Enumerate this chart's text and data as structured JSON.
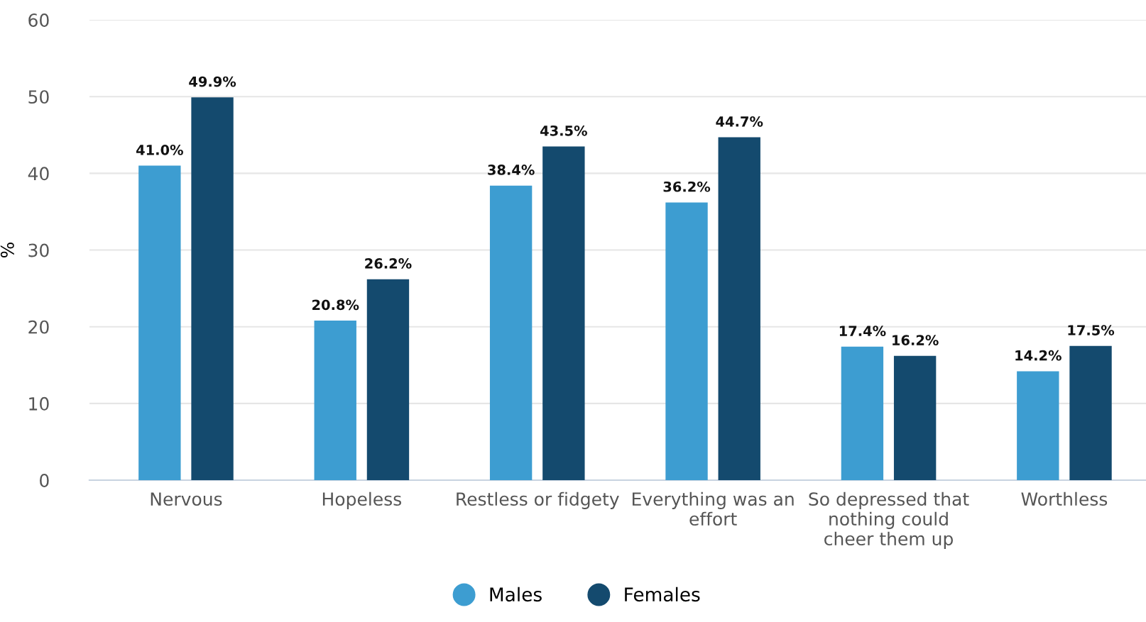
{
  "chart_data": {
    "type": "bar",
    "ylabel": "%",
    "categories": [
      "Nervous",
      "Hopeless",
      "Restless or fidgety",
      "Everything was an\neffort",
      "So depressed that\nnothing could\ncheer them up",
      "Worthless"
    ],
    "series": [
      {
        "name": "Males",
        "color": "#3d9dd1",
        "values": [
          41.0,
          20.8,
          38.4,
          36.2,
          17.4,
          14.2
        ],
        "value_labels": [
          "41.0%",
          "20.8%",
          "38.4%",
          "36.2%",
          "17.4%",
          "14.2%"
        ]
      },
      {
        "name": "Females",
        "color": "#144a6e",
        "values": [
          49.9,
          26.2,
          43.5,
          44.7,
          16.2,
          17.5
        ],
        "value_labels": [
          "49.9%",
          "26.2%",
          "43.5%",
          "44.7%",
          "16.2%",
          "17.5%"
        ]
      }
    ],
    "ylim": [
      0,
      60
    ],
    "yticks": [
      0,
      10,
      20,
      30,
      40,
      50,
      60
    ],
    "grid": "y",
    "legend": "bottom"
  }
}
